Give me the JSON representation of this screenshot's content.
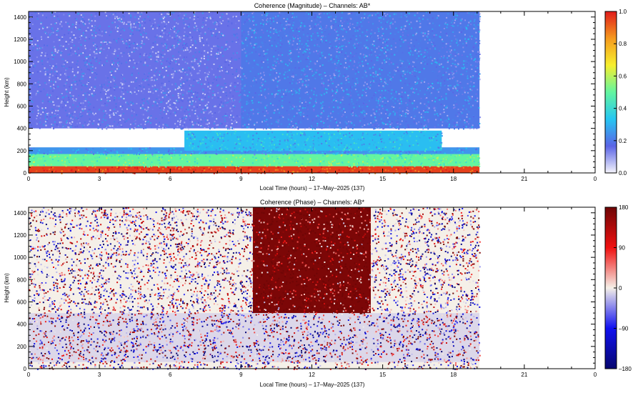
{
  "chart_data": [
    {
      "type": "heatmap",
      "title": "Coherence (Magnitude) – Channels: AB*",
      "xlabel": "Local Time (hours) – 17–May–2025 (137)",
      "ylabel": "Height (km)",
      "x_range": [
        0,
        24
      ],
      "y_range": [
        0,
        1450
      ],
      "x_ticks": [
        "0",
        "3",
        "6",
        "9",
        "12",
        "15",
        "18",
        "21",
        "0"
      ],
      "y_ticks": [
        "0",
        "200",
        "400",
        "600",
        "800",
        "1000",
        "1200",
        "1400"
      ],
      "data_x_end": 19.1,
      "colorbar": {
        "range": [
          0.0,
          1.0
        ],
        "ticks": [
          "0.0",
          "0.2",
          "0.4",
          "0.6",
          "0.8",
          "1.0"
        ],
        "colors": [
          "#f4f4fb",
          "#5a64e6",
          "#26c6f2",
          "#63f5a0",
          "#f7ef2e",
          "#f59a1e",
          "#e01b1b"
        ]
      },
      "layers": [
        {
          "x": [
            0,
            19.1
          ],
          "y": [
            0,
            60
          ],
          "value": 0.95
        },
        {
          "x": [
            0,
            19.1
          ],
          "y": [
            60,
            170
          ],
          "value": 0.5
        },
        {
          "x": [
            0,
            19.1
          ],
          "y": [
            170,
            230
          ],
          "value": 0.25
        },
        {
          "x": [
            6.6,
            17.5
          ],
          "y": [
            200,
            380
          ],
          "value": 0.32
        },
        {
          "x": [
            0,
            19.1
          ],
          "y": [
            400,
            1450
          ],
          "value": 0.15
        },
        {
          "x": [
            9.0,
            19.1
          ],
          "y": [
            400,
            1450
          ],
          "value": 0.2
        }
      ]
    },
    {
      "type": "heatmap",
      "title": "Coherence (Phase) – Channels: AB*",
      "xlabel": "Local Time (hours) – 17–May–2025 (137)",
      "ylabel": "Height (km)",
      "x_range": [
        0,
        24
      ],
      "y_range": [
        0,
        1450
      ],
      "x_ticks": [
        "0",
        "3",
        "6",
        "9",
        "12",
        "15",
        "18",
        "21",
        "0"
      ],
      "y_ticks": [
        "0",
        "200",
        "400",
        "600",
        "800",
        "1000",
        "1200",
        "1400"
      ],
      "data_x_end": 19.1,
      "colorbar": {
        "range": [
          -180,
          180
        ],
        "ticks": [
          "–180",
          "–90",
          "0",
          "90",
          "180"
        ],
        "colors": [
          "#06066e",
          "#1010f0",
          "#f5f0e8",
          "#f01010",
          "#6e0606"
        ]
      },
      "layers": [
        {
          "x": [
            0,
            19.1
          ],
          "y": [
            0,
            60
          ],
          "value": 0
        },
        {
          "x": [
            0,
            19.1
          ],
          "y": [
            60,
            500
          ],
          "value": -10
        },
        {
          "x": [
            0,
            9.5
          ],
          "y": [
            500,
            1450
          ],
          "value": 0
        },
        {
          "x": [
            9.5,
            14.5
          ],
          "y": [
            500,
            1450
          ],
          "value": 170
        },
        {
          "x": [
            14.5,
            19.1
          ],
          "y": [
            500,
            1450
          ],
          "value": 0
        }
      ]
    }
  ]
}
